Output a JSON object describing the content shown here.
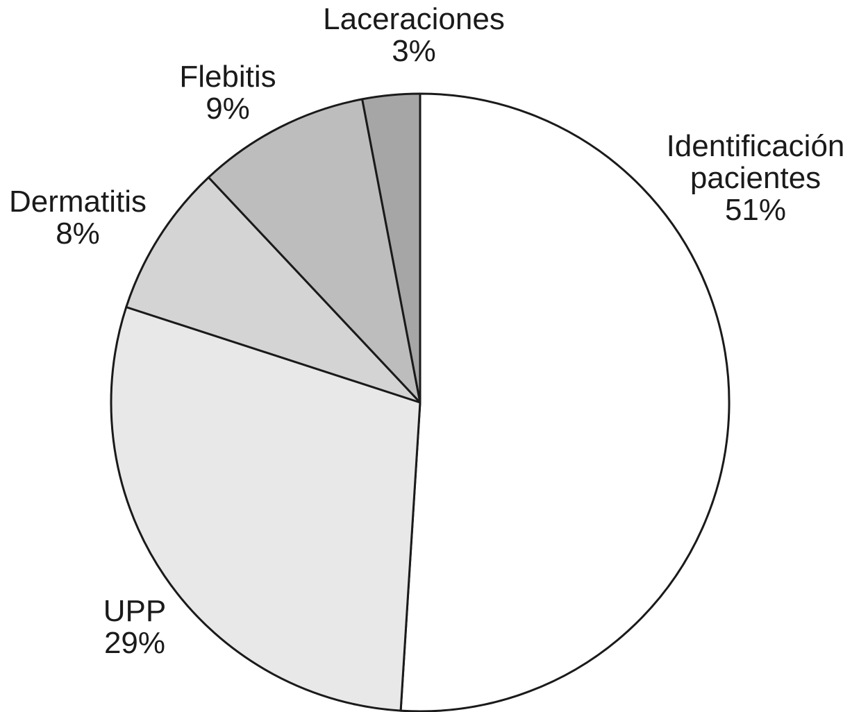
{
  "chart_data": {
    "type": "pie",
    "title": "",
    "start_angle_deg": 0,
    "direction": "clockwise",
    "grid": false,
    "legend": "none",
    "slices": [
      {
        "label_lines": [
          "Identificación",
          "pacientes"
        ],
        "value": 51,
        "value_label": "51%",
        "color": "#ffffff"
      },
      {
        "label_lines": [
          "UPP"
        ],
        "value": 29,
        "value_label": "29%",
        "color": "#e8e8e8"
      },
      {
        "label_lines": [
          "Dermatitis"
        ],
        "value": 8,
        "value_label": "8%",
        "color": "#d4d4d4"
      },
      {
        "label_lines": [
          "Flebitis"
        ],
        "value": 9,
        "value_label": "9%",
        "color": "#bdbdbd"
      },
      {
        "label_lines": [
          "Laceraciones"
        ],
        "value": 3,
        "value_label": "3%",
        "color": "#a6a6a6"
      }
    ]
  }
}
